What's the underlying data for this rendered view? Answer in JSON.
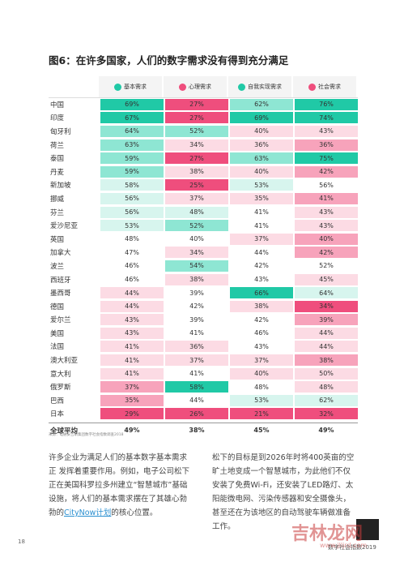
{
  "header": {
    "title": "图6：在许多国家，人们的数字需求没有得到充分满足"
  },
  "table": {
    "columns": [
      "基本需求",
      "心理需求",
      "自我实现需求",
      "社会需求"
    ],
    "rows": [
      [
        "中国",
        "69%",
        "27%",
        "62%",
        "76%"
      ],
      [
        "印度",
        "67%",
        "27%",
        "69%",
        "74%"
      ],
      [
        "匈牙利",
        "64%",
        "52%",
        "40%",
        "43%"
      ],
      [
        "荷兰",
        "63%",
        "34%",
        "36%",
        "36%"
      ],
      [
        "泰国",
        "59%",
        "27%",
        "63%",
        "75%"
      ],
      [
        "丹麦",
        "59%",
        "38%",
        "40%",
        "42%"
      ],
      [
        "新加坡",
        "58%",
        "25%",
        "53%",
        "56%"
      ],
      [
        "挪威",
        "56%",
        "37%",
        "35%",
        "41%"
      ],
      [
        "芬兰",
        "56%",
        "48%",
        "41%",
        "43%"
      ],
      [
        "爱沙尼亚",
        "53%",
        "52%",
        "41%",
        "43%"
      ],
      [
        "英国",
        "48%",
        "40%",
        "37%",
        "40%"
      ],
      [
        "加拿大",
        "47%",
        "34%",
        "44%",
        "42%"
      ],
      [
        "波兰",
        "46%",
        "54%",
        "42%",
        "52%"
      ],
      [
        "西班牙",
        "46%",
        "38%",
        "43%",
        "45%"
      ],
      [
        "墨西哥",
        "44%",
        "39%",
        "66%",
        "64%"
      ],
      [
        "德国",
        "44%",
        "42%",
        "38%",
        "34%"
      ],
      [
        "爱尔兰",
        "43%",
        "39%",
        "42%",
        "39%"
      ],
      [
        "美国",
        "43%",
        "41%",
        "46%",
        "44%"
      ],
      [
        "法国",
        "41%",
        "36%",
        "43%",
        "44%"
      ],
      [
        "澳大利亚",
        "41%",
        "37%",
        "37%",
        "38%"
      ],
      [
        "意大利",
        "41%",
        "41%",
        "40%",
        "50%"
      ],
      [
        "俄罗斯",
        "37%",
        "58%",
        "48%",
        "48%"
      ],
      [
        "巴西",
        "35%",
        "44%",
        "53%",
        "62%"
      ],
      [
        "日本",
        "29%",
        "26%",
        "21%",
        "32%"
      ]
    ],
    "average": [
      "全球平均",
      "49%",
      "38%",
      "45%",
      "49%"
    ],
    "source": "来源：电通安吉斯集团数字社会指数调查2018"
  },
  "body": {
    "left": [
      "许多企业为满足人们的基本数字基本需求正 发挥着重要作用。例如，电子公司松下正在美国科罗拉多州建立“智慧城市”基础设施，将人们的基本需求摆在了其雄心勃勃的",
      "CityNow计划",
      "的核心位置。"
    ],
    "right": "松下的目标是到2026年时将400英亩的空旷土地变成一个智慧城市，为此他们不仅安装了免费Wi-Fi，还安装了LED路灯、太阳能微电网、污染传感器和安全摄像头，甚至还在为该地区的自动驾驶车辆做准备工作。"
  },
  "footer": {
    "page": "18",
    "title": "数字社会指数2019",
    "watermark": "吉林龙网",
    "watermark_url": "www.jlljrd.com"
  }
}
